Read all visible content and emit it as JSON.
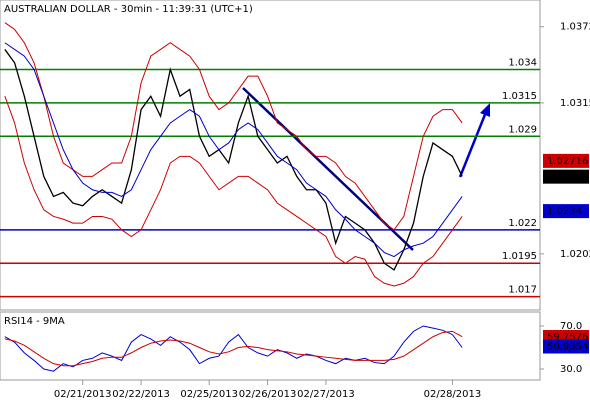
{
  "chart_data": [
    {
      "type": "line",
      "title": "AUSTRALIAN DOLLAR - 30min - 11:39:31 (UTC+1)",
      "x": [
        0,
        1,
        2,
        3,
        4,
        5,
        6,
        7,
        8,
        9,
        10,
        11,
        12,
        13,
        14,
        15,
        16,
        17,
        18,
        19,
        20,
        21,
        22,
        23,
        24,
        25,
        26,
        27,
        28,
        29,
        30,
        31,
        32,
        33,
        34,
        35,
        36,
        37,
        38,
        39,
        40,
        41,
        42,
        43,
        44,
        45,
        46,
        47
      ],
      "xlim": [
        -0.5,
        55
      ],
      "xticks": [
        {
          "value": 8,
          "label": "02/21/2013"
        },
        {
          "value": 14,
          "label": "02/22/2013"
        },
        {
          "value": 21,
          "label": "02/25/2013"
        },
        {
          "value": 27,
          "label": "02/26/2013"
        },
        {
          "value": 33,
          "label": "02/27/2013"
        },
        {
          "value": 46,
          "label": "02/28/2013"
        }
      ],
      "ylim": [
        1.016,
        1.0392
      ],
      "yticks": [
        1.0372,
        1.0315,
        1.0202
      ],
      "series": [
        {
          "color": "#000000",
          "values": [
            1.0355,
            1.0345,
            1.032,
            1.029,
            1.026,
            1.0245,
            1.0248,
            1.024,
            1.0238,
            1.0245,
            1.025,
            1.0245,
            1.024,
            1.0265,
            1.031,
            1.032,
            1.0305,
            1.034,
            1.032,
            1.0325,
            1.029,
            1.0275,
            1.028,
            1.027,
            1.03,
            1.032,
            1.029,
            1.028,
            1.027,
            1.0275,
            1.026,
            1.025,
            1.025,
            1.024,
            1.021,
            1.023,
            1.0225,
            1.022,
            1.021,
            1.0195,
            1.019,
            1.0205,
            1.0225,
            1.026,
            1.0285,
            1.028,
            1.0275,
            1.026
          ]
        },
        {
          "color": "#cc0000",
          "values": [
            1.0375,
            1.037,
            1.036,
            1.0345,
            1.032,
            1.029,
            1.027,
            1.0265,
            1.026,
            1.026,
            1.0265,
            1.027,
            1.027,
            1.029,
            1.033,
            1.035,
            1.0355,
            1.036,
            1.0355,
            1.035,
            1.034,
            1.032,
            1.031,
            1.0315,
            1.0325,
            1.0335,
            1.0335,
            1.032,
            1.03,
            1.0295,
            1.029,
            1.028,
            1.0275,
            1.0275,
            1.027,
            1.026,
            1.0255,
            1.0245,
            1.0235,
            1.0225,
            1.022,
            1.023,
            1.026,
            1.029,
            1.0305,
            1.031,
            1.031,
            1.03
          ]
        },
        {
          "color": "#cc0000",
          "values": [
            1.032,
            1.03,
            1.027,
            1.025,
            1.0235,
            1.023,
            1.0228,
            1.0225,
            1.0225,
            1.023,
            1.023,
            1.0228,
            1.022,
            1.0215,
            1.022,
            1.0235,
            1.025,
            1.027,
            1.0275,
            1.0275,
            1.027,
            1.026,
            1.025,
            1.0255,
            1.026,
            1.026,
            1.0255,
            1.025,
            1.024,
            1.0235,
            1.023,
            1.0225,
            1.022,
            1.0215,
            1.02,
            1.0195,
            1.02,
            1.0198,
            1.0185,
            1.018,
            1.0178,
            1.018,
            1.0185,
            1.0195,
            1.02,
            1.021,
            1.022,
            1.023
          ]
        },
        {
          "color": "#0000cc",
          "values": [
            1.036,
            1.0355,
            1.035,
            1.034,
            1.032,
            1.03,
            1.028,
            1.0265,
            1.0255,
            1.025,
            1.0248,
            1.0248,
            1.0245,
            1.025,
            1.0265,
            1.028,
            1.029,
            1.03,
            1.0305,
            1.031,
            1.0305,
            1.029,
            1.028,
            1.0285,
            1.0295,
            1.03,
            1.0295,
            1.0285,
            1.0275,
            1.027,
            1.0265,
            1.0255,
            1.025,
            1.0245,
            1.0235,
            1.0228,
            1.022,
            1.0215,
            1.021,
            1.0203,
            1.02,
            1.0205,
            1.0208,
            1.021,
            1.0215,
            1.0225,
            1.0235,
            1.0245
          ]
        }
      ],
      "level_lines": [
        {
          "value": 1.034,
          "color": "#008000"
        },
        {
          "value": 1.0315,
          "color": "#008000"
        },
        {
          "value": 1.029,
          "color": "#008000"
        },
        {
          "value": 1.022,
          "color": "#0000cc"
        },
        {
          "value": 1.0195,
          "color": "#cc0000"
        },
        {
          "value": 1.017,
          "color": "#cc0000"
        }
      ],
      "price_markers": [
        {
          "value": 1.02716,
          "color": "#cc0000"
        },
        {
          "value": 1.02598,
          "color": "#000000"
        },
        {
          "value": 1.0234,
          "color": "#0000cc"
        }
      ]
    },
    {
      "type": "line",
      "title": "RSI14 - 9MA",
      "ylim": [
        19.8,
        83
      ],
      "yticks": [
        {
          "value": 70,
          "label": "70.0"
        },
        {
          "value": 30,
          "label": "30.0"
        }
      ],
      "series": [
        {
          "color": "#0000cc",
          "values": [
            60,
            55,
            45,
            38,
            30,
            28,
            35,
            32,
            38,
            40,
            45,
            42,
            38,
            55,
            62,
            58,
            52,
            60,
            55,
            48,
            35,
            40,
            42,
            55,
            62,
            50,
            45,
            42,
            48,
            45,
            40,
            44,
            42,
            38,
            35,
            40,
            38,
            40,
            36,
            35,
            42,
            55,
            65,
            70,
            68,
            66,
            62,
            50
          ]
        },
        {
          "color": "#cc0000",
          "values": [
            58,
            56,
            52,
            46,
            40,
            35,
            33,
            33,
            35,
            37,
            40,
            41,
            41,
            45,
            50,
            54,
            56,
            57,
            56,
            54,
            50,
            46,
            44,
            46,
            50,
            51,
            50,
            48,
            47,
            46,
            44,
            43,
            42,
            41,
            40,
            39,
            38,
            38,
            38,
            38,
            39,
            42,
            48,
            54,
            60,
            64,
            65,
            60
          ]
        }
      ],
      "price_markers": [
        {
          "value": 59.7576,
          "color": "#cc0000"
        },
        {
          "value": 50.9354,
          "color": "#0000cc"
        }
      ]
    }
  ]
}
